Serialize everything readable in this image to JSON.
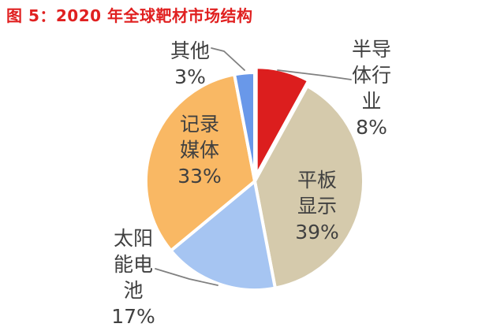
{
  "title": "图 5：2020 年全球靶材市场结构",
  "title_color": "#E02020",
  "background_color": "#FFFFFF",
  "label_text_color": "#404040",
  "leader_line_color": "#808080",
  "slice_border_color": "#FFFFFF",
  "chart_data": {
    "type": "pie",
    "title": "图 5：2020 年全球靶材市场结构",
    "unit": "percent",
    "direction": "clockwise",
    "start_angle_deg": 0,
    "legend": "none",
    "slices": [
      {
        "id": "semiconductor",
        "name": "半导体行业",
        "value": 8,
        "pct_label": "8%",
        "color": "#DC1E1E",
        "exploded": true,
        "label_lines": [
          "半导",
          "体行",
          "业",
          "8%"
        ],
        "label_position": "outside-right"
      },
      {
        "id": "flat-panel-display",
        "name": "平板显示",
        "value": 39,
        "pct_label": "39%",
        "color": "#D5CAAC",
        "exploded": false,
        "label_lines": [
          "平板",
          "显示",
          "39%"
        ],
        "label_position": "inside"
      },
      {
        "id": "solar-cell",
        "name": "太阳能电池",
        "value": 17,
        "pct_label": "17%",
        "color": "#A6C5F2",
        "exploded": false,
        "label_lines": [
          "太阳",
          "能电",
          "池",
          "17%"
        ],
        "label_position": "outside-left"
      },
      {
        "id": "recording-media",
        "name": "记录媒体",
        "value": 33,
        "pct_label": "33%",
        "color": "#F9B864",
        "exploded": false,
        "label_lines": [
          "记录",
          "媒体",
          "33%"
        ],
        "label_position": "inside"
      },
      {
        "id": "other",
        "name": "其他",
        "value": 3,
        "pct_label": "3%",
        "color": "#6998E9",
        "exploded": false,
        "label_lines": [
          "其他",
          "3%"
        ],
        "label_position": "outside-top"
      }
    ]
  }
}
